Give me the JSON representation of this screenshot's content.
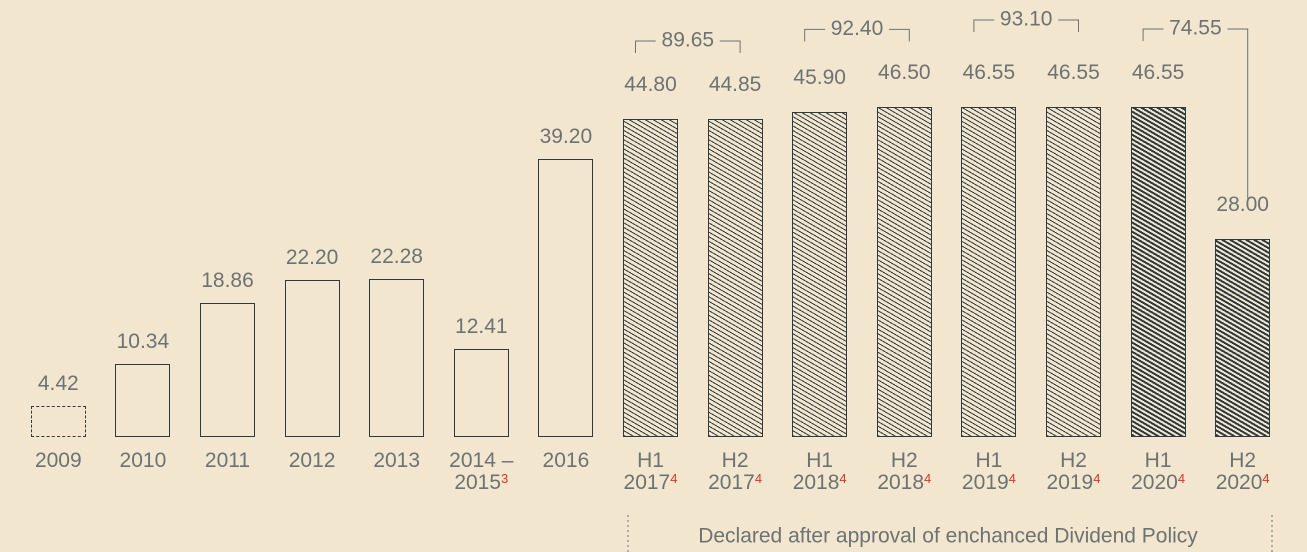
{
  "chart_data": {
    "type": "bar",
    "categories": [
      "2009",
      "2010",
      "2011",
      "2012",
      "2013",
      "2014 –\n2015",
      "2016",
      "H1\n2017",
      "H2\n2017",
      "H1\n2018",
      "H2\n2018",
      "H1\n2019",
      "H2\n2019",
      "H1\n2020",
      "H2\n2020"
    ],
    "footnotes": [
      null,
      null,
      null,
      null,
      null,
      "3",
      null,
      "4",
      "4",
      "4",
      "4",
      "4",
      "4",
      "4",
      "4"
    ],
    "values": [
      4.42,
      10.34,
      18.86,
      22.2,
      22.28,
      12.41,
      39.2,
      44.8,
      44.85,
      45.9,
      46.5,
      46.55,
      46.55,
      46.55,
      28.0
    ],
    "value_labels": [
      "4.42",
      "10.34",
      "18.86",
      "22.20",
      "22.28",
      "12.41",
      "39.20",
      "44.80",
      "44.85",
      "45.90",
      "46.50",
      "46.55",
      "46.55",
      "46.55",
      "28.00"
    ],
    "styles": [
      "dashed",
      "outline",
      "outline",
      "outline",
      "outline",
      "outline",
      "outline",
      "hatch",
      "hatch",
      "hatch",
      "hatch",
      "hatch",
      "hatch",
      "hatch-dark",
      "hatch-dark"
    ],
    "annotations": [
      {
        "text": "89.65",
        "start": 7,
        "end": 8
      },
      {
        "text": "92.40",
        "start": 9,
        "end": 10
      },
      {
        "text": "93.10",
        "start": 11,
        "end": 12
      },
      {
        "text": "74.55",
        "start": 13,
        "end": 14
      }
    ],
    "note": "Declared after approval of enchanced Dividend Policy",
    "color": "#2d3a3e"
  }
}
